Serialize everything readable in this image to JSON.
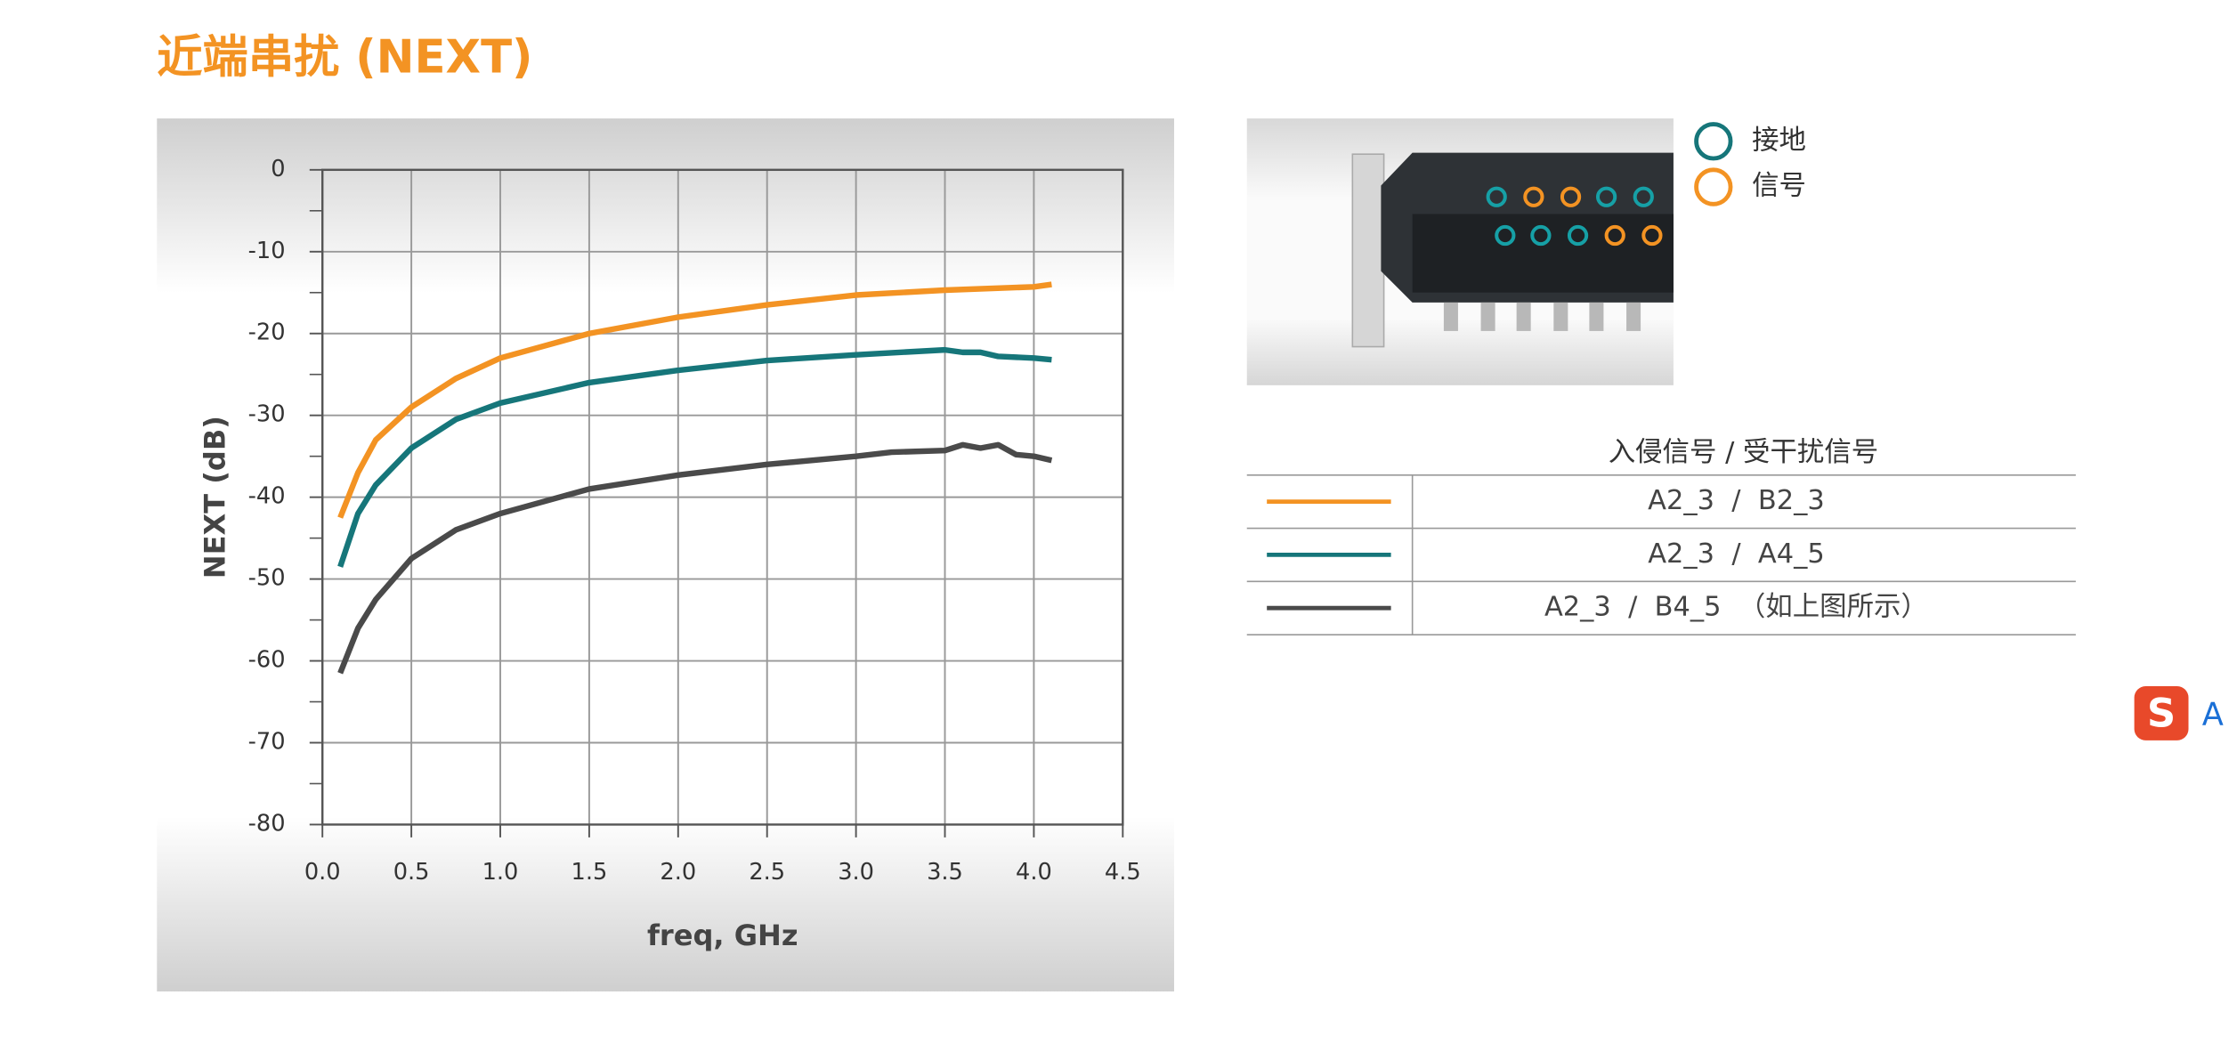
{
  "title": "近端串扰 (NEXT)",
  "chart_data": {
    "type": "line",
    "xlabel": "freq, GHz",
    "ylabel": "NEXT (dB)",
    "xlim": [
      0,
      4.5
    ],
    "ylim": [
      -80,
      0
    ],
    "xticks": [
      {
        "value": 0,
        "label": "0.0"
      },
      0.5,
      {
        "value": 1,
        "label": "1.0"
      },
      1.5,
      {
        "value": 2,
        "label": "2.0"
      },
      2.5,
      {
        "value": 3,
        "label": "3.0"
      },
      3.5,
      {
        "value": 4,
        "label": "4.0"
      },
      4.5
    ],
    "yticks": [
      0,
      -10,
      -20,
      -30,
      -40,
      -50,
      -60,
      -70,
      -80
    ],
    "grid": true,
    "series": [
      {
        "name": "A2_3  /  B2_3",
        "color": "#f39323",
        "x": [
          0.1,
          0.2,
          0.3,
          0.5,
          0.75,
          1.0,
          1.5,
          2.0,
          2.5,
          3.0,
          3.5,
          4.0,
          4.1
        ],
        "values": [
          -42.5,
          -37,
          -33,
          -29,
          -25.5,
          -23,
          -20,
          -18,
          -16.5,
          -15.3,
          -14.7,
          -14.3,
          -14
        ]
      },
      {
        "name": "A2_3  /  A4_5",
        "color": "#16767a",
        "x": [
          0.1,
          0.2,
          0.3,
          0.5,
          0.75,
          1.0,
          1.5,
          2.0,
          2.5,
          3.0,
          3.5,
          3.6,
          3.7,
          3.8,
          4.0,
          4.1
        ],
        "values": [
          -48.5,
          -42,
          -38.5,
          -34,
          -30.5,
          -28.5,
          -26,
          -24.5,
          -23.3,
          -22.6,
          -22,
          -22.3,
          -22.3,
          -22.8,
          -23,
          -23.2
        ]
      },
      {
        "name": "A2_3  /  B4_5  （如上图所示）",
        "color": "#4a4a4a",
        "x": [
          0.1,
          0.2,
          0.3,
          0.5,
          0.75,
          1.0,
          1.5,
          2.0,
          2.5,
          3.0,
          3.2,
          3.5,
          3.6,
          3.7,
          3.8,
          3.9,
          4.0,
          4.1
        ],
        "values": [
          -61.5,
          -56,
          -52.5,
          -47.5,
          -44,
          -42,
          -39,
          -37.3,
          -36,
          -35,
          -34.5,
          -34.3,
          -33.6,
          -34,
          -33.6,
          -34.8,
          -35,
          -35.5
        ]
      }
    ]
  },
  "pin_legend": [
    {
      "label": "接地",
      "color": "#16767a"
    },
    {
      "label": "信号",
      "color": "#f39323"
    }
  ],
  "table_header": "入侵信号 / 受干扰信号",
  "ime_badge": "A"
}
